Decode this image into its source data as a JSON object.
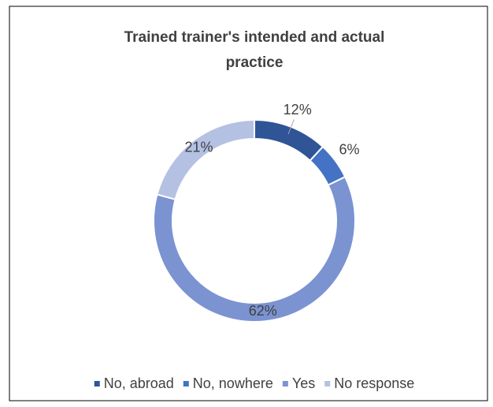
{
  "chart_data": {
    "type": "donut",
    "title": "Trained trainer's intended and actual practice",
    "categories": [
      "No, abroad",
      "No, nowhere",
      "Yes",
      "No response"
    ],
    "values": [
      12,
      6,
      62,
      21
    ],
    "value_labels": [
      "12%",
      "6%",
      "62%",
      "21%"
    ],
    "colors": [
      "#2f5597",
      "#4472c4",
      "#7b93d1",
      "#b4c1e3"
    ],
    "legend": "bottom"
  }
}
